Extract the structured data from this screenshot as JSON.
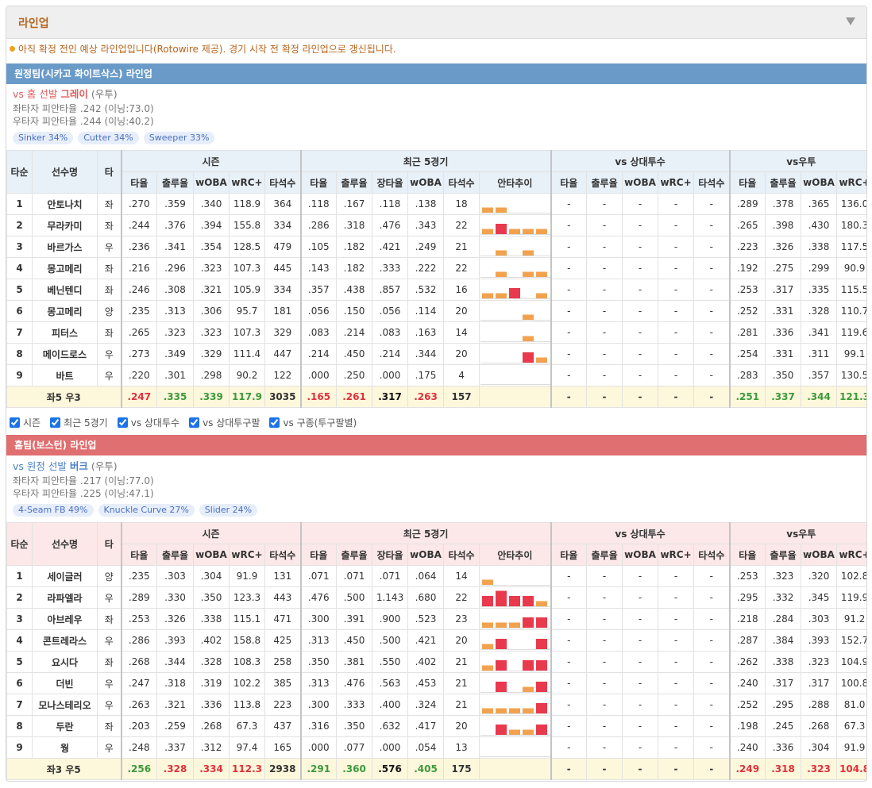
{
  "header": {
    "title": "라인업"
  },
  "notice": "아직 확정 전인 예상 라인업입니다(Rotowire 제공). 경기 시작 전 확정 라인업으로 갱신됩니다.",
  "table_header": {
    "left": [
      "타순",
      "선수명",
      "타"
    ],
    "groups": [
      "시즌",
      "최근 5경기",
      "vs 상대투수",
      "vs우투"
    ],
    "columns": [
      "타율",
      "출루율",
      "wOBA",
      "wRC+",
      "타석수",
      "타율",
      "출루율",
      "장타율",
      "wOBA",
      "타석수",
      "안타추이",
      "타율",
      "출루율",
      "wOBA",
      "wRC+",
      "타석수",
      "타율",
      "출루율",
      "wOBA",
      "wRC+"
    ]
  },
  "trend_colors": [
    "#f2a24e",
    "#e8394d"
  ],
  "away": {
    "title": "원정팀(시카고 화이트삭스) 라인업",
    "matchup": "vs 홈 선발",
    "pitcher": "그레이",
    "pitcher_hand": "(우투)",
    "split_left": "좌타자 피안타율 .242 (이닝:73.0)",
    "split_right": "우타자 피안타율 .244 (이닝:40.2)",
    "pitches": [
      "Sinker 34%",
      "Cutter 34%",
      "Sweeper 33%"
    ],
    "rows": [
      {
        "order": "1",
        "name": "안토나치",
        "bats": "좌",
        "stats": [
          ".270",
          ".359",
          ".340",
          "118.9",
          "364",
          ".118",
          ".167",
          ".118",
          ".138",
          "18",
          "-",
          "-",
          "-",
          "-",
          "-",
          ".289",
          ".378",
          ".365",
          "136.0"
        ],
        "trend": [
          1,
          1,
          0,
          0,
          0
        ]
      },
      {
        "order": "2",
        "name": "무라카미",
        "bats": "좌",
        "stats": [
          ".244",
          ".376",
          ".394",
          "155.8",
          "334",
          ".286",
          ".318",
          ".476",
          ".343",
          "22",
          "-",
          "-",
          "-",
          "-",
          "-",
          ".265",
          ".398",
          ".430",
          "180.3"
        ],
        "trend": [
          1,
          2,
          1,
          1,
          1
        ]
      },
      {
        "order": "3",
        "name": "바르가스",
        "bats": "우",
        "stats": [
          ".236",
          ".341",
          ".354",
          "128.5",
          "479",
          ".105",
          ".182",
          ".421",
          ".249",
          "21",
          "-",
          "-",
          "-",
          "-",
          "-",
          ".223",
          ".326",
          ".338",
          "117.5"
        ],
        "trend": [
          0,
          1,
          0,
          1,
          0
        ]
      },
      {
        "order": "4",
        "name": "몽고메리",
        "bats": "좌",
        "stats": [
          ".216",
          ".296",
          ".323",
          "107.3",
          "445",
          ".143",
          ".182",
          ".333",
          ".222",
          "22",
          "-",
          "-",
          "-",
          "-",
          "-",
          ".192",
          ".275",
          ".299",
          "90.9"
        ],
        "trend": [
          0,
          1,
          0,
          1,
          1
        ]
      },
      {
        "order": "5",
        "name": "베닌텐디",
        "bats": "좌",
        "stats": [
          ".246",
          ".308",
          ".321",
          "105.9",
          "334",
          ".357",
          ".438",
          ".857",
          ".532",
          "16",
          "-",
          "-",
          "-",
          "-",
          "-",
          ".253",
          ".317",
          ".335",
          "115.5"
        ],
        "trend": [
          1,
          1,
          2,
          0,
          1
        ]
      },
      {
        "order": "6",
        "name": "몽고메리",
        "bats": "양",
        "stats": [
          ".235",
          ".313",
          ".306",
          "95.7",
          "181",
          ".056",
          ".150",
          ".056",
          ".114",
          "20",
          "-",
          "-",
          "-",
          "-",
          "-",
          ".252",
          ".331",
          ".328",
          "110.7"
        ],
        "trend": [
          0,
          0,
          0,
          1,
          0
        ]
      },
      {
        "order": "7",
        "name": "피터스",
        "bats": "좌",
        "stats": [
          ".265",
          ".323",
          ".323",
          "107.3",
          "329",
          ".083",
          ".214",
          ".083",
          ".163",
          "14",
          "-",
          "-",
          "-",
          "-",
          "-",
          ".281",
          ".336",
          ".341",
          "119.6"
        ],
        "trend": [
          0,
          0,
          0,
          1,
          0
        ]
      },
      {
        "order": "8",
        "name": "메이드로스",
        "bats": "우",
        "stats": [
          ".273",
          ".349",
          ".329",
          "111.4",
          "447",
          ".214",
          ".450",
          ".214",
          ".344",
          "20",
          "-",
          "-",
          "-",
          "-",
          "-",
          ".254",
          ".331",
          ".311",
          "99.1"
        ],
        "trend": [
          0,
          0,
          0,
          2,
          1
        ]
      },
      {
        "order": "9",
        "name": "바트",
        "bats": "우",
        "stats": [
          ".220",
          ".301",
          ".298",
          "90.2",
          "122",
          ".000",
          ".250",
          ".000",
          ".175",
          "4",
          "-",
          "-",
          "-",
          "-",
          "-",
          ".283",
          ".350",
          ".357",
          "130.5"
        ],
        "trend": [
          0,
          0,
          0,
          0,
          0
        ]
      }
    ],
    "total": {
      "label": "좌5 우3",
      "stats": [
        ".247",
        ".335",
        ".339",
        "117.9",
        "3035",
        ".165",
        ".261",
        ".317",
        ".263",
        "157",
        "-",
        "-",
        "-",
        "-",
        "-",
        ".251",
        ".337",
        ".344",
        "121.3"
      ],
      "styles": [
        "red",
        "green",
        "green",
        "green",
        "plain",
        "red",
        "red",
        "black",
        "red",
        "plain",
        "plain",
        "plain",
        "plain",
        "plain",
        "plain",
        "green",
        "green",
        "green",
        "green"
      ]
    }
  },
  "options": [
    "시즌",
    "최근 5경기",
    "vs 상대투수",
    "vs 상대투구팔",
    "vs 구종(투구팔별)"
  ],
  "home": {
    "title": "홈팀(보스턴) 라인업",
    "matchup": "vs 원정 선발",
    "pitcher": "버크",
    "pitcher_hand": "(우투)",
    "split_left": "좌타자 피안타율 .217 (이닝:77.0)",
    "split_right": "우타자 피안타율 .225 (이닝:47.1)",
    "pitches": [
      "4-Seam FB 49%",
      "Knuckle Curve 27%",
      "Slider 24%"
    ],
    "rows": [
      {
        "order": "1",
        "name": "세이글러",
        "bats": "양",
        "stats": [
          ".235",
          ".303",
          ".304",
          "91.9",
          "131",
          ".071",
          ".071",
          ".071",
          ".064",
          "14",
          "-",
          "-",
          "-",
          "-",
          "-",
          ".253",
          ".323",
          ".320",
          "102.8"
        ],
        "trend": [
          1,
          0,
          0,
          0,
          0
        ]
      },
      {
        "order": "2",
        "name": "라파엘라",
        "bats": "우",
        "stats": [
          ".289",
          ".330",
          ".350",
          "123.3",
          "443",
          ".476",
          ".500",
          "1.143",
          ".680",
          "22",
          "-",
          "-",
          "-",
          "-",
          "-",
          ".295",
          ".332",
          ".345",
          "119.9"
        ],
        "trend": [
          2,
          3,
          2,
          2,
          1
        ]
      },
      {
        "order": "3",
        "name": "아브레우",
        "bats": "좌",
        "stats": [
          ".253",
          ".326",
          ".338",
          "115.1",
          "471",
          ".300",
          ".391",
          ".900",
          ".523",
          "23",
          "-",
          "-",
          "-",
          "-",
          "-",
          ".218",
          ".284",
          ".303",
          "91.2"
        ],
        "trend": [
          1,
          1,
          1,
          2,
          2
        ]
      },
      {
        "order": "4",
        "name": "콘트레라스",
        "bats": "우",
        "stats": [
          ".286",
          ".393",
          ".402",
          "158.8",
          "425",
          ".313",
          ".450",
          ".500",
          ".421",
          "20",
          "-",
          "-",
          "-",
          "-",
          "-",
          ".287",
          ".384",
          ".393",
          "152.7"
        ],
        "trend": [
          1,
          2,
          0,
          0,
          2
        ]
      },
      {
        "order": "5",
        "name": "요시다",
        "bats": "좌",
        "stats": [
          ".268",
          ".344",
          ".328",
          "108.3",
          "258",
          ".350",
          ".381",
          ".550",
          ".402",
          "21",
          "-",
          "-",
          "-",
          "-",
          "-",
          ".262",
          ".338",
          ".323",
          "104.9"
        ],
        "trend": [
          1,
          2,
          0,
          2,
          2
        ]
      },
      {
        "order": "6",
        "name": "더빈",
        "bats": "우",
        "stats": [
          ".247",
          ".318",
          ".319",
          "102.2",
          "385",
          ".313",
          ".476",
          ".563",
          ".453",
          "21",
          "-",
          "-",
          "-",
          "-",
          "-",
          ".240",
          ".317",
          ".317",
          "100.8"
        ],
        "trend": [
          0,
          2,
          0,
          1,
          2
        ]
      },
      {
        "order": "7",
        "name": "모나스테리오",
        "bats": "우",
        "stats": [
          ".263",
          ".321",
          ".336",
          "113.8",
          "223",
          ".300",
          ".333",
          ".400",
          ".324",
          "21",
          "-",
          "-",
          "-",
          "-",
          "-",
          ".252",
          ".295",
          ".288",
          "81.0"
        ],
        "trend": [
          1,
          1,
          1,
          1,
          2
        ]
      },
      {
        "order": "8",
        "name": "두란",
        "bats": "좌",
        "stats": [
          ".203",
          ".259",
          ".268",
          "67.3",
          "437",
          ".316",
          ".350",
          ".632",
          ".417",
          "20",
          "-",
          "-",
          "-",
          "-",
          "-",
          ".198",
          ".245",
          ".268",
          "67.3"
        ],
        "trend": [
          0,
          2,
          1,
          1,
          2
        ]
      },
      {
        "order": "9",
        "name": "웡",
        "bats": "우",
        "stats": [
          ".248",
          ".337",
          ".312",
          "97.4",
          "165",
          ".000",
          ".077",
          ".000",
          ".054",
          "13",
          "-",
          "-",
          "-",
          "-",
          "-",
          ".240",
          ".336",
          ".304",
          "91.9"
        ],
        "trend": [
          0,
          0,
          0,
          0,
          0
        ]
      }
    ],
    "total": {
      "label": "좌3 우5",
      "stats": [
        ".256",
        ".328",
        ".334",
        "112.3",
        "2938",
        ".291",
        ".360",
        ".576",
        ".405",
        "175",
        "-",
        "-",
        "-",
        "-",
        "-",
        ".249",
        ".318",
        ".323",
        "104.8"
      ],
      "styles": [
        "green",
        "red",
        "red",
        "red",
        "plain",
        "green",
        "green",
        "black",
        "green",
        "plain",
        "plain",
        "plain",
        "plain",
        "plain",
        "plain",
        "red",
        "red",
        "red",
        "red"
      ]
    }
  }
}
